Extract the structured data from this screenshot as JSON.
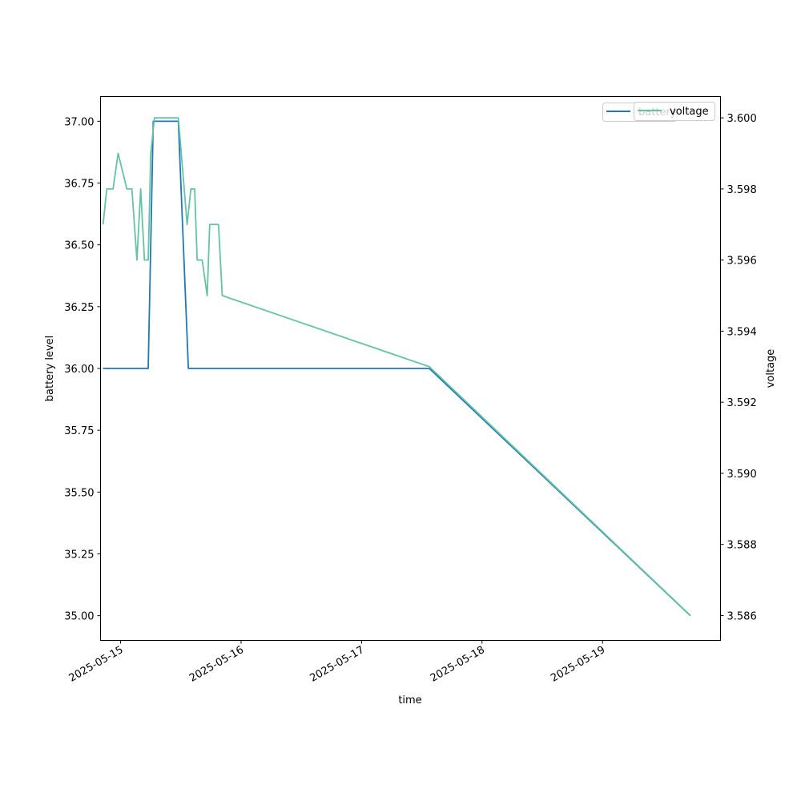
{
  "chart_data": {
    "type": "line",
    "title": "",
    "xlabel": "time",
    "ylabel": "battery level",
    "y2label": "voltage",
    "x_ticks": [
      "2025-05-15",
      "2025-05-16",
      "2025-05-17",
      "2025-05-18",
      "2025-05-19"
    ],
    "x_range": [
      "2025-05-14 20:00",
      "2025-05-19 23:30"
    ],
    "ylim": [
      34.9,
      37.1
    ],
    "y2lim": [
      3.5853,
      3.6006
    ],
    "y_ticks": [
      "35.00",
      "35.25",
      "35.50",
      "35.75",
      "36.00",
      "36.25",
      "36.50",
      "36.75",
      "37.00"
    ],
    "y2_ticks": [
      "3.586",
      "3.588",
      "3.590",
      "3.592",
      "3.594",
      "3.596",
      "3.598",
      "3.600"
    ],
    "legend_position": "upper-right",
    "series": [
      {
        "name": "battery",
        "axis": "left",
        "color": "#1f77b4",
        "points": [
          [
            "2025-05-14 20:30",
            36.0
          ],
          [
            "2025-05-15 05:30",
            36.0
          ],
          [
            "2025-05-15 06:30",
            37.0
          ],
          [
            "2025-05-15 11:30",
            37.0
          ],
          [
            "2025-05-15 13:30",
            36.0
          ],
          [
            "2025-05-17 13:30",
            36.0
          ],
          [
            "2025-05-19 17:30",
            35.0
          ]
        ]
      },
      {
        "name": "voltage",
        "axis": "right",
        "color": "#66c2a5",
        "points": [
          [
            "2025-05-14 20:30",
            3.597
          ],
          [
            "2025-05-14 21:15",
            3.598
          ],
          [
            "2025-05-14 22:30",
            3.598
          ],
          [
            "2025-05-14 23:30",
            3.599
          ],
          [
            "2025-05-15 01:15",
            3.598
          ],
          [
            "2025-05-15 02:15",
            3.598
          ],
          [
            "2025-05-15 03:15",
            3.596
          ],
          [
            "2025-05-15 04:00",
            3.598
          ],
          [
            "2025-05-15 04:45",
            3.596
          ],
          [
            "2025-05-15 05:30",
            3.596
          ],
          [
            "2025-05-15 06:00",
            3.599
          ],
          [
            "2025-05-15 06:45",
            3.6
          ],
          [
            "2025-05-15 11:30",
            3.6
          ],
          [
            "2025-05-15 13:15",
            3.597
          ],
          [
            "2025-05-15 14:00",
            3.598
          ],
          [
            "2025-05-15 14:45",
            3.598
          ],
          [
            "2025-05-15 15:15",
            3.596
          ],
          [
            "2025-05-15 16:15",
            3.596
          ],
          [
            "2025-05-15 17:15",
            3.595
          ],
          [
            "2025-05-15 17:45",
            3.597
          ],
          [
            "2025-05-15 19:30",
            3.597
          ],
          [
            "2025-05-15 20:15",
            3.595
          ],
          [
            "2025-05-17 13:30",
            3.593
          ],
          [
            "2025-05-19 17:30",
            3.586
          ]
        ]
      }
    ]
  }
}
